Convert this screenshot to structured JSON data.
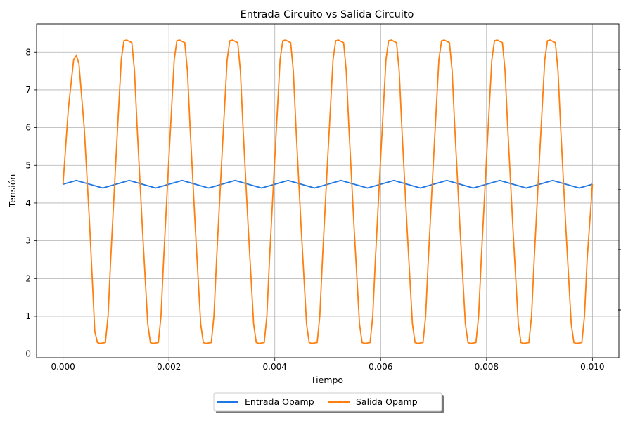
{
  "chart_data": {
    "type": "line",
    "title": "Entrada Circuito vs Salida Circuito",
    "xlabel": "Tiempo",
    "ylabel": "Tensión",
    "xlim": [
      -0.0005,
      0.0105
    ],
    "ylim": [
      -0.1,
      8.75
    ],
    "x_ticks": [
      0.0,
      0.002,
      0.004,
      0.006,
      0.008,
      0.01
    ],
    "x_tick_labels": [
      "0.000",
      "0.002",
      "0.004",
      "0.006",
      "0.008",
      "0.010"
    ],
    "y_ticks": [
      0,
      1,
      2,
      3,
      4,
      5,
      6,
      7,
      8
    ],
    "y_tick_labels": [
      "0",
      "1",
      "2",
      "3",
      "4",
      "5",
      "6",
      "7",
      "8"
    ],
    "grid": true,
    "legend_position": "bottom-center",
    "series": [
      {
        "name": "Entrada Opamp",
        "color": "#1f77e4",
        "x": [
          0.0,
          0.00025,
          0.0005,
          0.00075,
          0.001,
          0.00125,
          0.0015,
          0.00175,
          0.002,
          0.00225,
          0.0025,
          0.00275,
          0.003,
          0.00325,
          0.0035,
          0.00375,
          0.004,
          0.00425,
          0.0045,
          0.00475,
          0.005,
          0.00525,
          0.0055,
          0.00575,
          0.006,
          0.00625,
          0.0065,
          0.00675,
          0.007,
          0.00725,
          0.0075,
          0.00775,
          0.008,
          0.00825,
          0.0085,
          0.00875,
          0.009,
          0.00925,
          0.0095,
          0.00975,
          0.01
        ],
        "y": [
          4.5,
          4.6,
          4.5,
          4.4,
          4.5,
          4.6,
          4.5,
          4.4,
          4.5,
          4.6,
          4.5,
          4.4,
          4.5,
          4.6,
          4.5,
          4.4,
          4.5,
          4.6,
          4.5,
          4.4,
          4.5,
          4.6,
          4.5,
          4.4,
          4.5,
          4.6,
          4.5,
          4.4,
          4.5,
          4.6,
          4.5,
          4.4,
          4.5,
          4.6,
          4.5,
          4.4,
          4.5,
          4.6,
          4.5,
          4.4,
          4.5
        ]
      },
      {
        "name": "Salida Opamp",
        "color": "#ff7f0e",
        "x": [
          0.0,
          0.0001,
          0.0002,
          0.00025,
          0.0003,
          0.0004,
          0.0005,
          0.0006,
          0.00065,
          0.0007,
          0.0008,
          0.00085,
          0.0009,
          0.001,
          0.0011,
          0.00115,
          0.0012,
          0.0013,
          0.00135,
          0.0014,
          0.0015,
          0.0016,
          0.00165,
          0.0017,
          0.0018,
          0.00185,
          0.0019,
          0.002,
          0.0021,
          0.00215,
          0.0022,
          0.0023,
          0.00235,
          0.0024,
          0.0025,
          0.0026,
          0.00265,
          0.0027,
          0.0028,
          0.00285,
          0.0029,
          0.003,
          0.0031,
          0.00315,
          0.0032,
          0.0033,
          0.00335,
          0.0034,
          0.0035,
          0.0036,
          0.00365,
          0.0037,
          0.0038,
          0.00385,
          0.0039,
          0.004,
          0.0041,
          0.00415,
          0.0042,
          0.0043,
          0.00435,
          0.0044,
          0.0045,
          0.0046,
          0.00465,
          0.0047,
          0.0048,
          0.00485,
          0.0049,
          0.005,
          0.0051,
          0.00515,
          0.0052,
          0.0053,
          0.00535,
          0.0054,
          0.0055,
          0.0056,
          0.00565,
          0.0057,
          0.0058,
          0.00585,
          0.0059,
          0.006,
          0.0061,
          0.00615,
          0.0062,
          0.0063,
          0.00635,
          0.0064,
          0.0065,
          0.0066,
          0.00665,
          0.0067,
          0.0068,
          0.00685,
          0.0069,
          0.007,
          0.0071,
          0.00715,
          0.0072,
          0.0073,
          0.00735,
          0.0074,
          0.0075,
          0.0076,
          0.00765,
          0.0077,
          0.0078,
          0.00785,
          0.0079,
          0.008,
          0.0081,
          0.00815,
          0.0082,
          0.0083,
          0.00835,
          0.0084,
          0.0085,
          0.0086,
          0.00865,
          0.0087,
          0.0088,
          0.00885,
          0.0089,
          0.009,
          0.0091,
          0.00915,
          0.0092,
          0.0093,
          0.00935,
          0.0094,
          0.0095,
          0.0096,
          0.00965,
          0.0097,
          0.0098,
          0.00985,
          0.0099,
          0.01
        ],
        "y": [
          4.5,
          6.5,
          7.8,
          7.92,
          7.7,
          6.0,
          3.5,
          0.6,
          0.3,
          0.28,
          0.3,
          1.0,
          2.5,
          5.2,
          7.8,
          8.3,
          8.32,
          8.25,
          7.5,
          6.0,
          3.3,
          0.8,
          0.3,
          0.28,
          0.3,
          1.0,
          2.5,
          5.2,
          7.8,
          8.3,
          8.32,
          8.25,
          7.5,
          6.0,
          3.3,
          0.8,
          0.3,
          0.28,
          0.3,
          1.0,
          2.5,
          5.2,
          7.8,
          8.3,
          8.32,
          8.25,
          7.5,
          6.0,
          3.3,
          0.8,
          0.3,
          0.28,
          0.3,
          1.0,
          2.5,
          5.2,
          7.8,
          8.3,
          8.32,
          8.25,
          7.5,
          6.0,
          3.3,
          0.8,
          0.3,
          0.28,
          0.3,
          1.0,
          2.5,
          5.2,
          7.8,
          8.3,
          8.32,
          8.25,
          7.5,
          6.0,
          3.3,
          0.8,
          0.3,
          0.28,
          0.3,
          1.0,
          2.5,
          5.2,
          7.8,
          8.3,
          8.32,
          8.25,
          7.5,
          6.0,
          3.3,
          0.8,
          0.3,
          0.28,
          0.3,
          1.0,
          2.5,
          5.2,
          7.8,
          8.3,
          8.32,
          8.25,
          7.5,
          6.0,
          3.3,
          0.8,
          0.3,
          0.28,
          0.3,
          1.0,
          2.5,
          5.2,
          7.8,
          8.3,
          8.32,
          8.25,
          7.5,
          6.0,
          3.3,
          0.8,
          0.3,
          0.28,
          0.3,
          1.0,
          2.5,
          5.2,
          7.8,
          8.3,
          8.32,
          8.25,
          7.5,
          6.0,
          3.3,
          0.8,
          0.3,
          0.28,
          0.3,
          1.0,
          2.5,
          4.5
        ]
      }
    ]
  }
}
